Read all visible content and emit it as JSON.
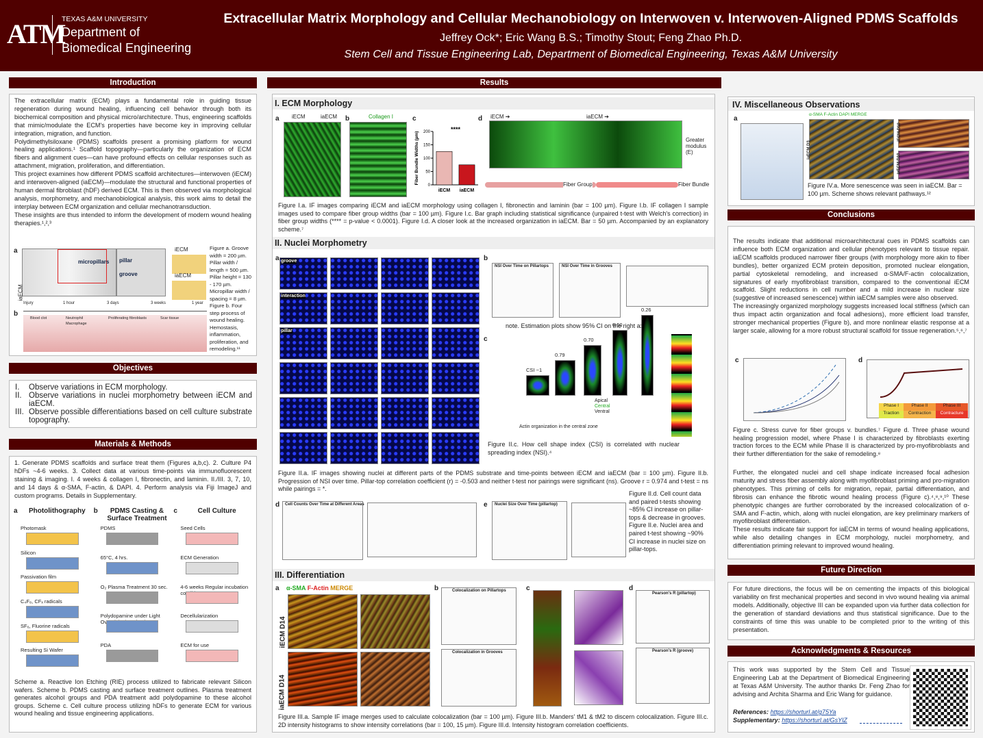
{
  "header": {
    "logo": "ATM",
    "university": "TEXAS A&M UNIVERSITY",
    "department": "Department of",
    "department2": "Biomedical Engineering",
    "title": "Extracellular Matrix Morphology and Cellular Mechanobiology on Interwoven v. Interwoven-Aligned PDMS Scaffolds",
    "authors": "Jeffrey Ock*; Eric Wang B.S.; Timothy Stout; Feng Zhao Ph.D.",
    "lab": "Stem Cell and Tissue Engineering Lab, Department of Biomedical Engineering, Texas A&M University"
  },
  "introduction": {
    "heading": "Introduction",
    "paragraphs": [
      "The extracellular matrix (ECM) plays a fundamental role in guiding tissue regeneration during wound healing, influencing cell behavior through both its biochemical composition and physical micro/architecture. Thus, engineering scaffolds that mimic/modulate the ECM's properties have become key in improving cellular integration, migration, and function.",
      "Polydimethylsiloxane (PDMS) scaffolds present a promising platform for wound healing applications.¹ Scaffold topography—particularly the organization of ECM fibers and alignment cues—can have profound effects on cellular responses such as attachment, migration, proliferation, and differentiation.",
      "This project examines how different PDMS scaffold architectures—interwoven (iECM) and interwoven-aligned (iaECM)—modulate the structural and functional properties of human dermal fibroblast (hDF) derived ECM. This is then observed via morphological analysis, morphometry, and mechanobiological analysis, this work aims to detail the interplay between ECM organization and cellular mechanotransduction.",
      "These insights are thus intended to inform the development of modern wound healing therapies.¹,²,³"
    ],
    "figure_labels": [
      "a",
      "b",
      "iaECM",
      "micropillars",
      "pillar",
      "groove",
      "iECM",
      "iaECM"
    ],
    "timeline": [
      "Injury",
      "1 hour",
      "3 days",
      "3 weeks",
      "1 year"
    ],
    "stages": [
      "Blood clot",
      "Neutrophil",
      "Macrophage",
      "Proliferating fibroblasts",
      "Scar tissue"
    ],
    "caption": "Figure a. Groove width = 200 µm. Pillar width / length = 500 µm. Pillar height = 130 - 170 µm. Micropillar width / spacing = 8 µm. Figure b. Four step process of wound healing. Hemostasis, inflammation, proliferation, and remodeling.¹¹"
  },
  "objectives": {
    "heading": "Objectives",
    "items": [
      {
        "num": "I.",
        "text": "Observe variations in ECM morphology."
      },
      {
        "num": "II.",
        "text": "Observe variations in nuclei morphometry between iECM and iaECM."
      },
      {
        "num": "III.",
        "text": "Observe possible differentiations based on cell culture substrate topography."
      }
    ]
  },
  "methods": {
    "heading": "Materials & Methods",
    "text": "1. Generate PDMS scaffolds and surface treat them (Figures a,b,c). 2. Culture P4 hDFs ~4-6 weeks. 3. Collect data at various time-points via immunofluorescent staining & imaging. I. 4 weeks & collagen I, fibronectin, and laminin. II./III. 3, 7, 10, and 14 days & α-SMA, F-actin, & DAPI. 4. Perform analysis via Fiji ImageJ and custom programs. Details in Supplementary.",
    "schemes": [
      {
        "letter": "a",
        "title": "Photolithography",
        "steps": [
          "Photomask",
          "Silicon",
          "Passivation film",
          "C₄F₈, CFₓ radicals",
          "SF₆, Fluorine radicals",
          "Resulting Si Wafer"
        ]
      },
      {
        "letter": "b",
        "title": "PDMS Casting & Surface Treatment",
        "steps": [
          "PDMS",
          "65°C, 4 hrs.",
          "O₂ Plasma Treatment 30 sec.",
          "Polydopamine under Light Overnight (~12 hrs.)",
          "PDA"
        ]
      },
      {
        "letter": "c",
        "title": "Cell Culture",
        "steps": [
          "Seed Cells",
          "ECM Generation",
          "4-6 weeks Regular incubation conditions",
          "Decellularization",
          "ECM for use"
        ]
      }
    ],
    "caption": "Scheme a. Reactive Ion Etching (RIE) process utilized to fabricate relevant Silicon wafers. Scheme b. PDMS casting and surface treatment outlines. Plasma treatment generates alcohol groups and PDA treatment add polydopamine to these alcohol groups. Scheme c. Cell culture process utilizing hDFs to generate ECM for various wound healing and tissue engineering applications."
  },
  "results": {
    "heading": "Results",
    "ecm": {
      "heading": "I. ECM Morphology",
      "panels": [
        "a",
        "b",
        "c",
        "d"
      ],
      "labels": [
        "iECM",
        "iaECM",
        "Collagen I",
        "iECM ➔",
        "iaECM ➔",
        "Fiber Group",
        "Fiber Bundle",
        "Greater modulus (E)"
      ],
      "chart": {
        "type": "bar",
        "categories": [
          "iECM",
          "iaECM"
        ],
        "values": [
          125,
          75
        ],
        "colors": [
          "#e9b7b3",
          "#c8161d"
        ],
        "ylim": [
          0,
          200
        ],
        "yticks": [
          0,
          50,
          100,
          150,
          200
        ],
        "y_label": "Fiber Bundle Widths (µm)",
        "significance": "****"
      },
      "caption": "Figure I.a. IF images comparing iECM and iaECM morphology using collagen I, fibronectin and laminin (bar = 100 µm). Figure I.b. IF collagen I sample images used to compare fiber group widths (bar = 100 µm). Figure I.c. Bar graph including statistical significance (unpaired t-test with Welch's correction) in fiber group widths (**** = p-value < 0.0001). Figure I.d. A closer look at the increased organization in iaECM. Bar = 50 µm. Accompanied by an explanatory scheme.⁷"
    },
    "nuclei": {
      "heading": "II. Nuclei Morphometry",
      "panels": [
        "a",
        "b",
        "c",
        "d",
        "e"
      ],
      "rows": [
        "groove",
        "interaction",
        "pillar"
      ],
      "plot_titles": [
        "NSI Over Time on Pillartops",
        "NSI Over Time in Grooves",
        "Cell Counts Over Time at Different Areas",
        "Nuclei Size Over Time (pillartop)"
      ],
      "note": "note. Estimation plots show 95% CI on the right axis.",
      "csi": [
        "CSI ~1",
        "0.79",
        "0.70",
        "0.50",
        "0.26"
      ],
      "zones": [
        "Apical",
        "Central",
        "Ventral",
        "Actin organization in the central zone"
      ],
      "caption_ab": "Figure II.a. IF images showing nuclei at different parts of the PDMS substrate and time-points between iECM and iaECM (bar = 100 µm). Figure II.b. Progression of NSI over time. Pillar-top correlation coefficient (r) = -0.503 and neither t-test nor pairings were significant (ns). Groove r = 0.974 and t-test = ns while pairings = *.",
      "caption_c": "Figure II.c. How cell shape index (CSI) is correlated with nuclear spreading index (NSI).⁴",
      "caption_de": "Figure II.d. Cell count data and paired t-tests showing ~85% CI increase on pillar-tops & decrease in grooves. Figure II.e. Nuclei area and paired t-test showing ~90% CI increase in nuclei size on pillar-tops."
    },
    "differentiation": {
      "heading": "III. Differentiation",
      "panels": [
        "a",
        "b",
        "c",
        "d"
      ],
      "stains": [
        "α-SMA",
        "F-Actin",
        "MERGE"
      ],
      "rows": [
        "iECM D14",
        "iaECM D14"
      ],
      "plot_titles": [
        "Colocalization on Pillartops",
        "Colocalization in Grooves",
        "Pearson's R (pillartop)",
        "Pearson's R (groove)"
      ],
      "caption": "Figure III.a. Sample IF image merges used to calculate colocalization (bar = 100 µm). Figure III.b. Manders' tM1 & tM2 to discern colocalization. Figure III.c. 2D intensity histograms to show intensity correlations (bar = 100, 15 µm). Figure III.d. Intensity histogram correlation coefficients."
    }
  },
  "misc": {
    "heading": "IV. Miscellaneous Observations",
    "panel": "a",
    "labels": [
      "α-SMA F-Actin DAPI MERGE",
      "iECM D10",
      "iaECM D10",
      "iaECM D3"
    ],
    "caption": "Figure IV.a. More senescence was seen in iaECM. Bar = 100 µm. Scheme shows relevant pathways.¹²"
  },
  "conclusions": {
    "heading": "Conclusions",
    "paragraphs": [
      "The results indicate that additional microarchitectural cues in PDMS scaffolds can influence both ECM organization and cellular phenotypes relevant to tissue repair. iaECM scaffolds produced narrower fiber groups (with morphology more akin to fiber bundles), better organized ECM protein deposition, promoted nuclear elongation, partial cytoskeletal remodeling, and increased α-SMA/F-actin colocalization, signatures of early myofibroblast transition, compared to the conventional iECM scaffold. Slight reductions in cell number and a mild increase in nuclear size (suggestive of increased senescence) within iaECM samples were also observed.",
      "The increasingly organized morphology suggests increased local stiffness (which can thus impact actin organization and focal adhesions), more efficient load transfer, stronger mechanical properties (Figure b), and more nonlinear elastic response at a larger scale, allowing for a more robust structural scaffold for tissue regeneration.⁵,⁶,⁷"
    ],
    "panels": [
      "c",
      "d"
    ],
    "phases": [
      "Phase I",
      "Phase II",
      "Phase III",
      "Traction",
      "Contraction",
      "Contracture"
    ],
    "caption": "Figure c. Stress curve for fiber groups v. bundles.⁷ Figure d. Three phase wound healing progression model, where Phase I is characterized by fibroblasts exerting traction forces to the ECM while Phase II is characterized by pro-myofibroblasts and their further differentiation for the sake of remodeling.⁸",
    "paragraphs2": [
      "Further, the elongated nuclei and cell shape indicate increased focal adhesion maturity and stress fiber assembly along with myofibroblast priming and pro-migration phenotypes. This priming of cells for migration, repair, partial differentiation, and fibrosis can enhance the fibrotic wound healing process (Figure c).⁴,⁸,⁹,¹⁰ These phenotypic changes are further corroborated by the increased colocalization of α-SMA and F-actin, which, along with nuclei elongation, are key preliminary markers of myofibroblast differentiation.",
      "These results indicate fair support for iaECM in terms of wound healing applications, while also detailing changes in ECM morphology, nuclei morphometry, and differentiation priming relevant to improved wound healing."
    ]
  },
  "future": {
    "heading": "Future Direction",
    "text": "For future directions, the focus will be on cementing the impacts of this biological variability on first mechanical properties and second in vivo wound healing via animal models. Additionally, objective III can be expanded upon via further data collection for the generation of standard deviations and thus statistical significance. Due to the constraints of time this was unable to be completed prior to the writing of this presentation."
  },
  "acknowledgments": {
    "heading": "Acknowledgments & Resources",
    "text": "This work was supported by the Stem Cell and Tissue Engineering Lab at the Department of Biomedical Engineering at Texas A&M University. The author thanks Dr. Feng Zhao for advising and Archita Sharma and Eric Wang for guidance.",
    "references_label": "References:",
    "references_url": "https://shorturl.at/g75Ya",
    "supplementary_label": "Supplementary:",
    "supplementary_url": "https://shorturl.at/GsYlZ"
  }
}
